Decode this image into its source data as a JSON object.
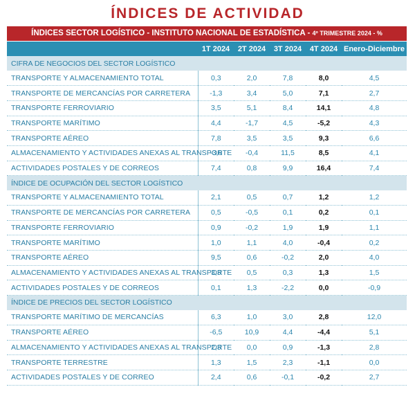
{
  "title": "ÍNDICES DE ACTIVIDAD",
  "banner": {
    "main": "ÍNDICES SECTOR LOGÍSTICO - INSTITUTO NACIONAL DE ESTADÍSTICA - ",
    "sub": "4º TRIMESTRE 2024 - %"
  },
  "columns": [
    "1T 2024",
    "2T 2024",
    "3T 2024",
    "4T 2024",
    "Enero-Diciembre"
  ],
  "sections": [
    {
      "title": "CIFRA DE NEGOCIOS DEL SECTOR LOGÍSTICO",
      "rows": [
        {
          "label": "TRANSPORTE Y ALMACENAMIENTO TOTAL",
          "values": [
            "0,3",
            "2,0",
            "7,8",
            "8,0",
            "4,5"
          ]
        },
        {
          "label": "TRANSPORTE DE MERCANCÍAS POR CARRETERA",
          "values": [
            "-1,3",
            "3,4",
            "5,0",
            "7,1",
            "2,7"
          ]
        },
        {
          "label": "TRANSPORTE FERROVIARIO",
          "values": [
            "3,5",
            "5,1",
            "8,4",
            "14,1",
            "4,8"
          ]
        },
        {
          "label": "TRANSPORTE MARÍTIMO",
          "values": [
            "4,4",
            "-1,7",
            "4,5",
            "-5,2",
            "4,3"
          ]
        },
        {
          "label": "TRANSPORTE AÉREO",
          "values": [
            "7,8",
            "3,5",
            "3,5",
            "9,3",
            "6,6"
          ]
        },
        {
          "label": "ALMACENAMIENTO Y ACTIVIDADES ANEXAS AL TRANSPORTE",
          "values": [
            "-3,6",
            "-0,4",
            "11,5",
            "8,5",
            "4,1"
          ]
        },
        {
          "label": "ACTIVIDADES POSTALES Y DE CORREOS",
          "values": [
            "7,4",
            "0,8",
            "9,9",
            "16,4",
            "7,4"
          ]
        }
      ]
    },
    {
      "title": "ÍNDICE DE OCUPACIÓN DEL SECTOR LOGÍSTICO",
      "rows": [
        {
          "label": "TRANSPORTE Y ALMACENAMIENTO TOTAL",
          "values": [
            "2,1",
            "0,5",
            "0,7",
            "1,2",
            "1,2"
          ]
        },
        {
          "label": "TRANSPORTE DE MERCANCÍAS POR CARRETERA",
          "values": [
            "0,5",
            "-0,5",
            "0,1",
            "0,2",
            "0,1"
          ]
        },
        {
          "label": "TRANSPORTE FERROVIARIO",
          "values": [
            "0,9",
            "-0,2",
            "1,9",
            "1,9",
            "1,1"
          ]
        },
        {
          "label": "TRANSPORTE MARÍTIMO",
          "values": [
            "1,0",
            "1,1",
            "4,0",
            "-0,4",
            "0,2"
          ]
        },
        {
          "label": "TRANSPORTE AÉREO",
          "values": [
            "9,5",
            "0,6",
            "-0,2",
            "2,0",
            "4,0"
          ]
        },
        {
          "label": "ALMACENAMIENTO Y ACTIVIDADES ANEXAS AL TRANSPORTE",
          "values": [
            "3,3",
            "0,5",
            "0,3",
            "1,3",
            "1,5"
          ]
        },
        {
          "label": "ACTIVIDADES POSTALES Y DE CORREOS",
          "values": [
            "0,1",
            "1,3",
            "-2,2",
            "0,0",
            "-0,9"
          ]
        }
      ]
    },
    {
      "title": "ÍNDICE DE PRECIOS DEL SECTOR LOGÍSTICO",
      "rows": [
        {
          "label": "TRANSPORTE MARÍTIMO DE MERCANCÍAS",
          "values": [
            "6,3",
            "1,0",
            "3,0",
            "2,8",
            "12,0"
          ]
        },
        {
          "label": "TRANSPORTE AÉREO",
          "values": [
            "-6,5",
            "10,9",
            "4,4",
            "-4,4",
            "5,1"
          ]
        },
        {
          "label": "ALMACENAMIENTO Y ACTIVIDADES ANEXAS AL TRANSPORTE",
          "values": [
            "2,3",
            "0,0",
            "0,9",
            "-1,3",
            "2,8"
          ]
        },
        {
          "label": "TRANSPORTE TERRESTRE",
          "values": [
            "1,3",
            "1,5",
            "2,3",
            "-1,1",
            "0,0"
          ]
        },
        {
          "label": "ACTIVIDADES POSTALES Y DE CORREO",
          "values": [
            "2,4",
            "0,6",
            "-0,1",
            "-0,2",
            "2,7"
          ]
        }
      ]
    }
  ]
}
